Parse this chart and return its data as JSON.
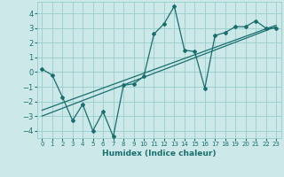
{
  "xlabel": "Humidex (Indice chaleur)",
  "background_color": "#cce8e8",
  "grid_color": "#99cccc",
  "line_color": "#1a6e6e",
  "xlim": [
    -0.5,
    23.5
  ],
  "ylim": [
    -4.5,
    4.8
  ],
  "xticks": [
    0,
    1,
    2,
    3,
    4,
    5,
    6,
    7,
    8,
    9,
    10,
    11,
    12,
    13,
    14,
    15,
    16,
    17,
    18,
    19,
    20,
    21,
    22,
    23
  ],
  "yticks": [
    -4,
    -3,
    -2,
    -1,
    0,
    1,
    2,
    3,
    4
  ],
  "data_x": [
    0,
    1,
    2,
    3,
    4,
    5,
    6,
    7,
    8,
    9,
    10,
    11,
    12,
    13,
    14,
    15,
    16,
    17,
    18,
    19,
    20,
    21,
    22,
    23
  ],
  "data_y": [
    0.2,
    -0.2,
    -1.7,
    -3.3,
    -2.2,
    -4.0,
    -2.7,
    -4.4,
    -0.9,
    -0.8,
    -0.3,
    2.6,
    3.3,
    4.5,
    1.5,
    1.4,
    -1.1,
    2.5,
    2.7,
    3.1,
    3.1,
    3.5,
    3.0,
    3.0
  ],
  "line1_x": [
    0,
    23
  ],
  "line1_y": [
    -3.0,
    3.1
  ],
  "line2_x": [
    0,
    23
  ],
  "line2_y": [
    -2.6,
    3.2
  ]
}
